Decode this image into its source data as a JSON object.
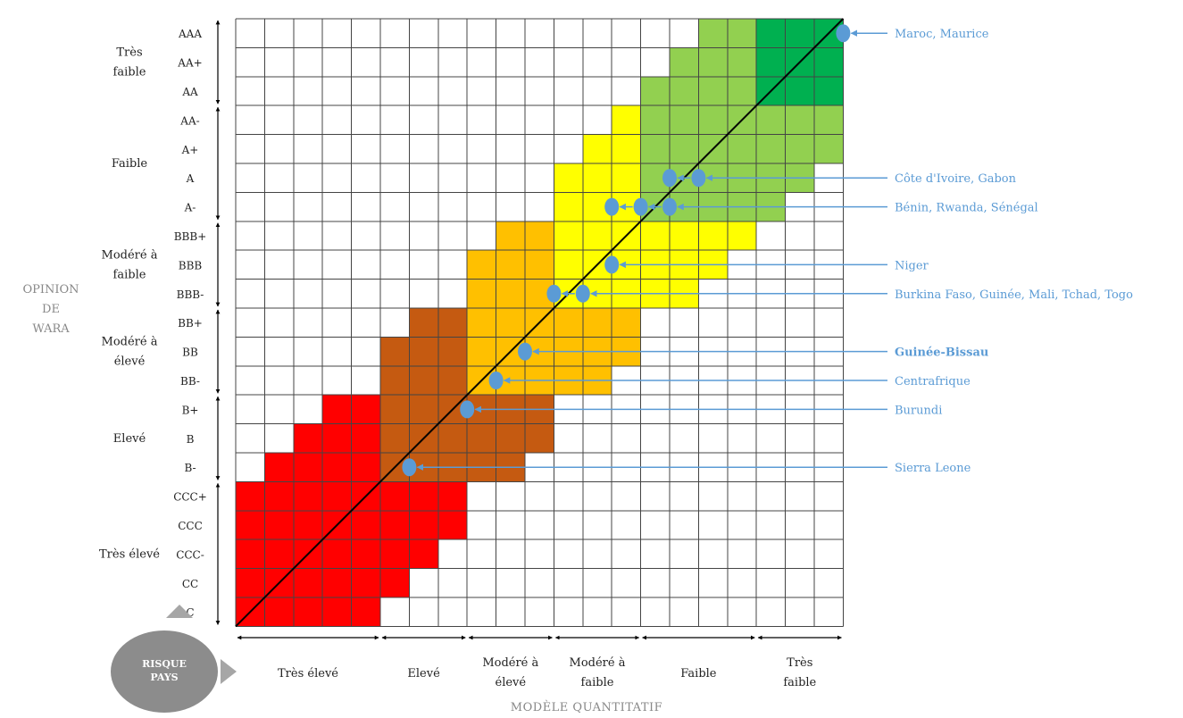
{
  "chart_data": {
    "type": "heatmap",
    "ratings_bottom_to_top": [
      "C",
      "CC",
      "CCC-",
      "CCC",
      "CCC+",
      "B-",
      "B",
      "B+",
      "BB-",
      "BB",
      "BB+",
      "BBB-",
      "BBB",
      "BBB+",
      "A-",
      "A",
      "A+",
      "AA-",
      "AA",
      "AA+",
      "AAA"
    ],
    "y_axis_title": [
      "OPINION",
      "DE",
      "WARA"
    ],
    "y_bands": [
      {
        "label": [
          "Très élevé"
        ]
      },
      {
        "label": [
          "Elevé"
        ]
      },
      {
        "label": [
          "Modéré à",
          "élevé"
        ]
      },
      {
        "label": [
          "Modéré à",
          "faible"
        ]
      },
      {
        "label": [
          "Faible"
        ]
      },
      {
        "label": [
          "Très",
          "faible"
        ]
      }
    ],
    "x_bands": [
      {
        "label": [
          "Très élevé"
        ]
      },
      {
        "label": [
          "Elevé"
        ]
      },
      {
        "label": [
          "Modéré à",
          "élevé"
        ]
      },
      {
        "label": [
          "Modéré à",
          "faible"
        ]
      },
      {
        "label": [
          "Faible"
        ]
      },
      {
        "label": [
          "Très",
          "faible"
        ]
      }
    ],
    "x_axis_title": "MODÈLE QUANTITATIF",
    "corner_label": [
      "RISQUE",
      "PAYS"
    ],
    "colors": {
      "very_high": "#ff0000",
      "high": "#c55a11",
      "moderate_high": "#ffc000",
      "moderate_low": "#ffff00",
      "low": "#92d050",
      "very_low": "#00b050",
      "marker": "#5b9bd5",
      "label": "#5b9bd5"
    },
    "countries": [
      {
        "label": "Maroc, Maurice",
        "bold": false,
        "points": [
          {
            "x": "AAA",
            "y": "AAA"
          }
        ]
      },
      {
        "label": "Côte d'Ivoire, Gabon",
        "bold": false,
        "points": [
          {
            "x": "A-",
            "y": "A"
          },
          {
            "x": "A",
            "y": "A"
          }
        ]
      },
      {
        "label": "Bénin, Rwanda, Sénégal",
        "bold": false,
        "points": [
          {
            "x": "BBB",
            "y": "A-"
          },
          {
            "x": "BBB+",
            "y": "A-"
          },
          {
            "x": "A-",
            "y": "A-"
          }
        ]
      },
      {
        "label": "Niger",
        "bold": false,
        "points": [
          {
            "x": "BBB",
            "y": "BBB"
          }
        ]
      },
      {
        "label": "Burkina Faso, Guinée, Mali, Tchad, Togo",
        "bold": false,
        "points": [
          {
            "x": "BB+",
            "y": "BBB-"
          },
          {
            "x": "BBB-",
            "y": "BBB-"
          }
        ]
      },
      {
        "label": "Guinée-Bissau",
        "bold": true,
        "points": [
          {
            "x": "BB",
            "y": "BB"
          }
        ]
      },
      {
        "label": "Centrafrique",
        "bold": false,
        "points": [
          {
            "x": "BB-",
            "y": "BB-"
          }
        ]
      },
      {
        "label": "Burundi",
        "bold": false,
        "points": [
          {
            "x": "B+",
            "y": "B+"
          }
        ]
      },
      {
        "label": "Sierra Leone",
        "bold": false,
        "points": [
          {
            "x": "B-",
            "y": "B-"
          }
        ]
      }
    ]
  }
}
